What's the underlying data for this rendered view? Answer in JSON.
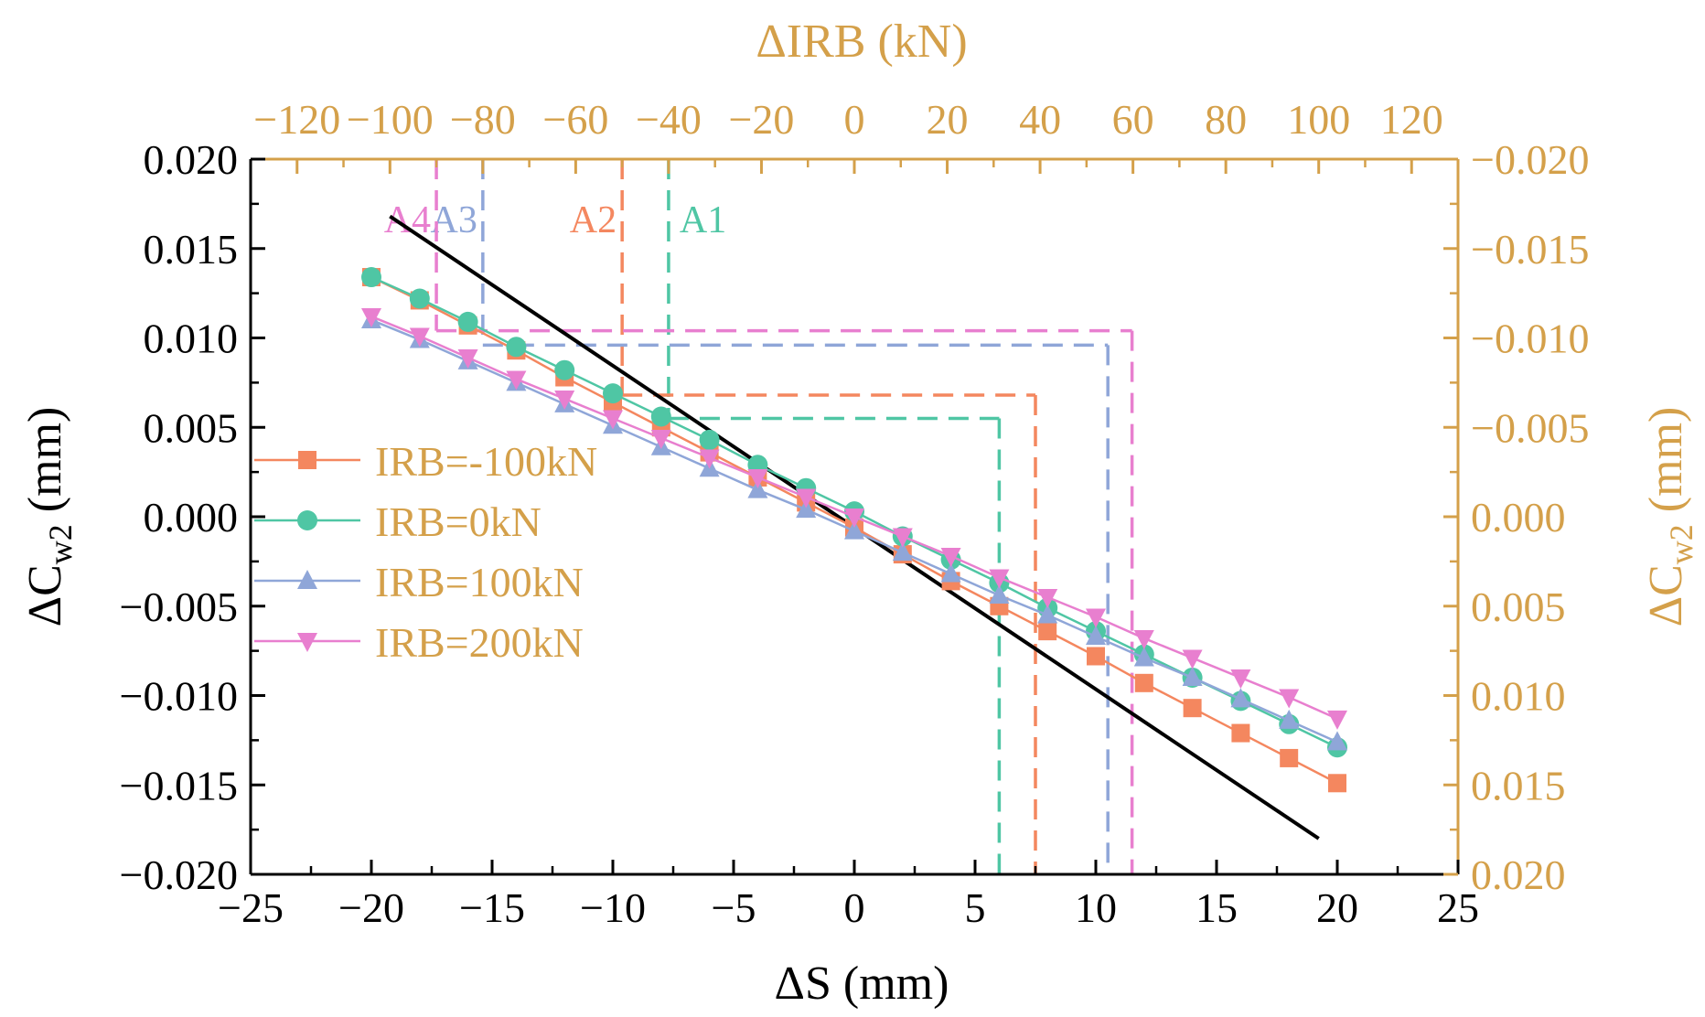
{
  "chart_data": {
    "type": "line",
    "x_axis": {
      "label_prefix": "Δ",
      "label_main": "S (mm)",
      "lim": [
        -25,
        25
      ],
      "ticks": [
        "−25",
        "−20",
        "−15",
        "−10",
        "−5",
        "0",
        "5",
        "10",
        "15",
        "20",
        "25"
      ]
    },
    "y_axis": {
      "label_prefix": "Δ",
      "label_main": "C",
      "label_sub": "w2",
      "label_unit": " (mm)",
      "lim": [
        -0.02,
        0.02
      ],
      "ticks": [
        "−0.020",
        "−0.015",
        "−0.010",
        "−0.005",
        "0.000",
        "0.005",
        "0.010",
        "0.015",
        "0.020"
      ]
    },
    "top_axis": {
      "label_prefix": "Δ",
      "label_main": "IRB (kN)",
      "lim": [
        -130,
        130
      ],
      "ticks": [
        "−120",
        "−100",
        "−80",
        "−60",
        "−40",
        "−20",
        "0",
        "20",
        "40",
        "60",
        "80",
        "100",
        "120"
      ]
    },
    "right_axis": {
      "label_prefix": "Δ",
      "label_main": "C",
      "label_sub": "w2",
      "label_unit": " (mm)",
      "lim": [
        0.02,
        -0.02
      ],
      "ticks": [
        "0.020",
        "0.015",
        "0.010",
        "0.005",
        "0.000",
        "−0.005",
        "−0.010",
        "−0.015",
        "−0.020"
      ]
    },
    "x": [
      -20,
      -18,
      -16,
      -14,
      -12,
      -10,
      -8,
      -6,
      -4,
      -2,
      0,
      2,
      4,
      6,
      8,
      10,
      12,
      14,
      16,
      18,
      20
    ],
    "series": [
      {
        "name": "IRB=-100kN",
        "color": "#f4875f",
        "marker": "square",
        "values": [
          0.0134,
          0.0121,
          0.0107,
          0.0093,
          0.0078,
          0.0064,
          0.005,
          0.0036,
          0.0022,
          0.0008,
          -0.0006,
          -0.0021,
          -0.0036,
          -0.005,
          -0.0064,
          -0.0078,
          -0.0093,
          -0.0107,
          -0.0121,
          -0.0135,
          -0.0149
        ]
      },
      {
        "name": "IRB=0kN",
        "color": "#4fc6a4",
        "marker": "circle",
        "values": [
          0.0134,
          0.0122,
          0.0109,
          0.0095,
          0.0082,
          0.0069,
          0.0056,
          0.0043,
          0.0029,
          0.0016,
          0.0003,
          -0.0011,
          -0.0024,
          -0.0037,
          -0.0051,
          -0.0064,
          -0.0077,
          -0.009,
          -0.0103,
          -0.0116,
          -0.0129
        ]
      },
      {
        "name": "IRB=100kN",
        "color": "#8fa6d8",
        "marker": "triangle-up",
        "values": [
          0.011,
          0.0099,
          0.0087,
          0.0075,
          0.0063,
          0.0051,
          0.0039,
          0.0027,
          0.0015,
          0.0004,
          -0.0008,
          -0.002,
          -0.0032,
          -0.0044,
          -0.0055,
          -0.0067,
          -0.0079,
          -0.009,
          -0.0102,
          -0.0114,
          -0.0126
        ]
      },
      {
        "name": "IRB=200kN",
        "color": "#e87fcf",
        "marker": "triangle-down",
        "values": [
          0.0112,
          0.0101,
          0.0089,
          0.0077,
          0.0066,
          0.0055,
          0.0044,
          0.0033,
          0.0022,
          0.0011,
          0.0,
          -0.0011,
          -0.0022,
          -0.0034,
          -0.0045,
          -0.0056,
          -0.0068,
          -0.0079,
          -0.009,
          -0.0101,
          -0.0113
        ]
      }
    ],
    "reference_line": {
      "name": "ΔIRB",
      "color": "#000000",
      "points": [
        [
          -100,
          0.0168
        ],
        [
          100,
          -0.018
        ]
      ]
    },
    "annotations": [
      {
        "label": "A1",
        "color": "#4fc6a4",
        "irb": -40,
        "y": 0.0055,
        "x_cross": 6.0
      },
      {
        "label": "A2",
        "color": "#f4875f",
        "irb": -50,
        "y": 0.0068,
        "x_cross": 7.5
      },
      {
        "label": "A3",
        "color": "#8fa6d8",
        "irb": -80,
        "y": 0.0096,
        "x_cross": 10.5
      },
      {
        "label": "A4",
        "color": "#e87fcf",
        "irb": -90,
        "y": 0.0104,
        "x_cross": 11.5
      }
    ],
    "axis_color_secondary": "#d4a04a",
    "legend_position": "left"
  }
}
